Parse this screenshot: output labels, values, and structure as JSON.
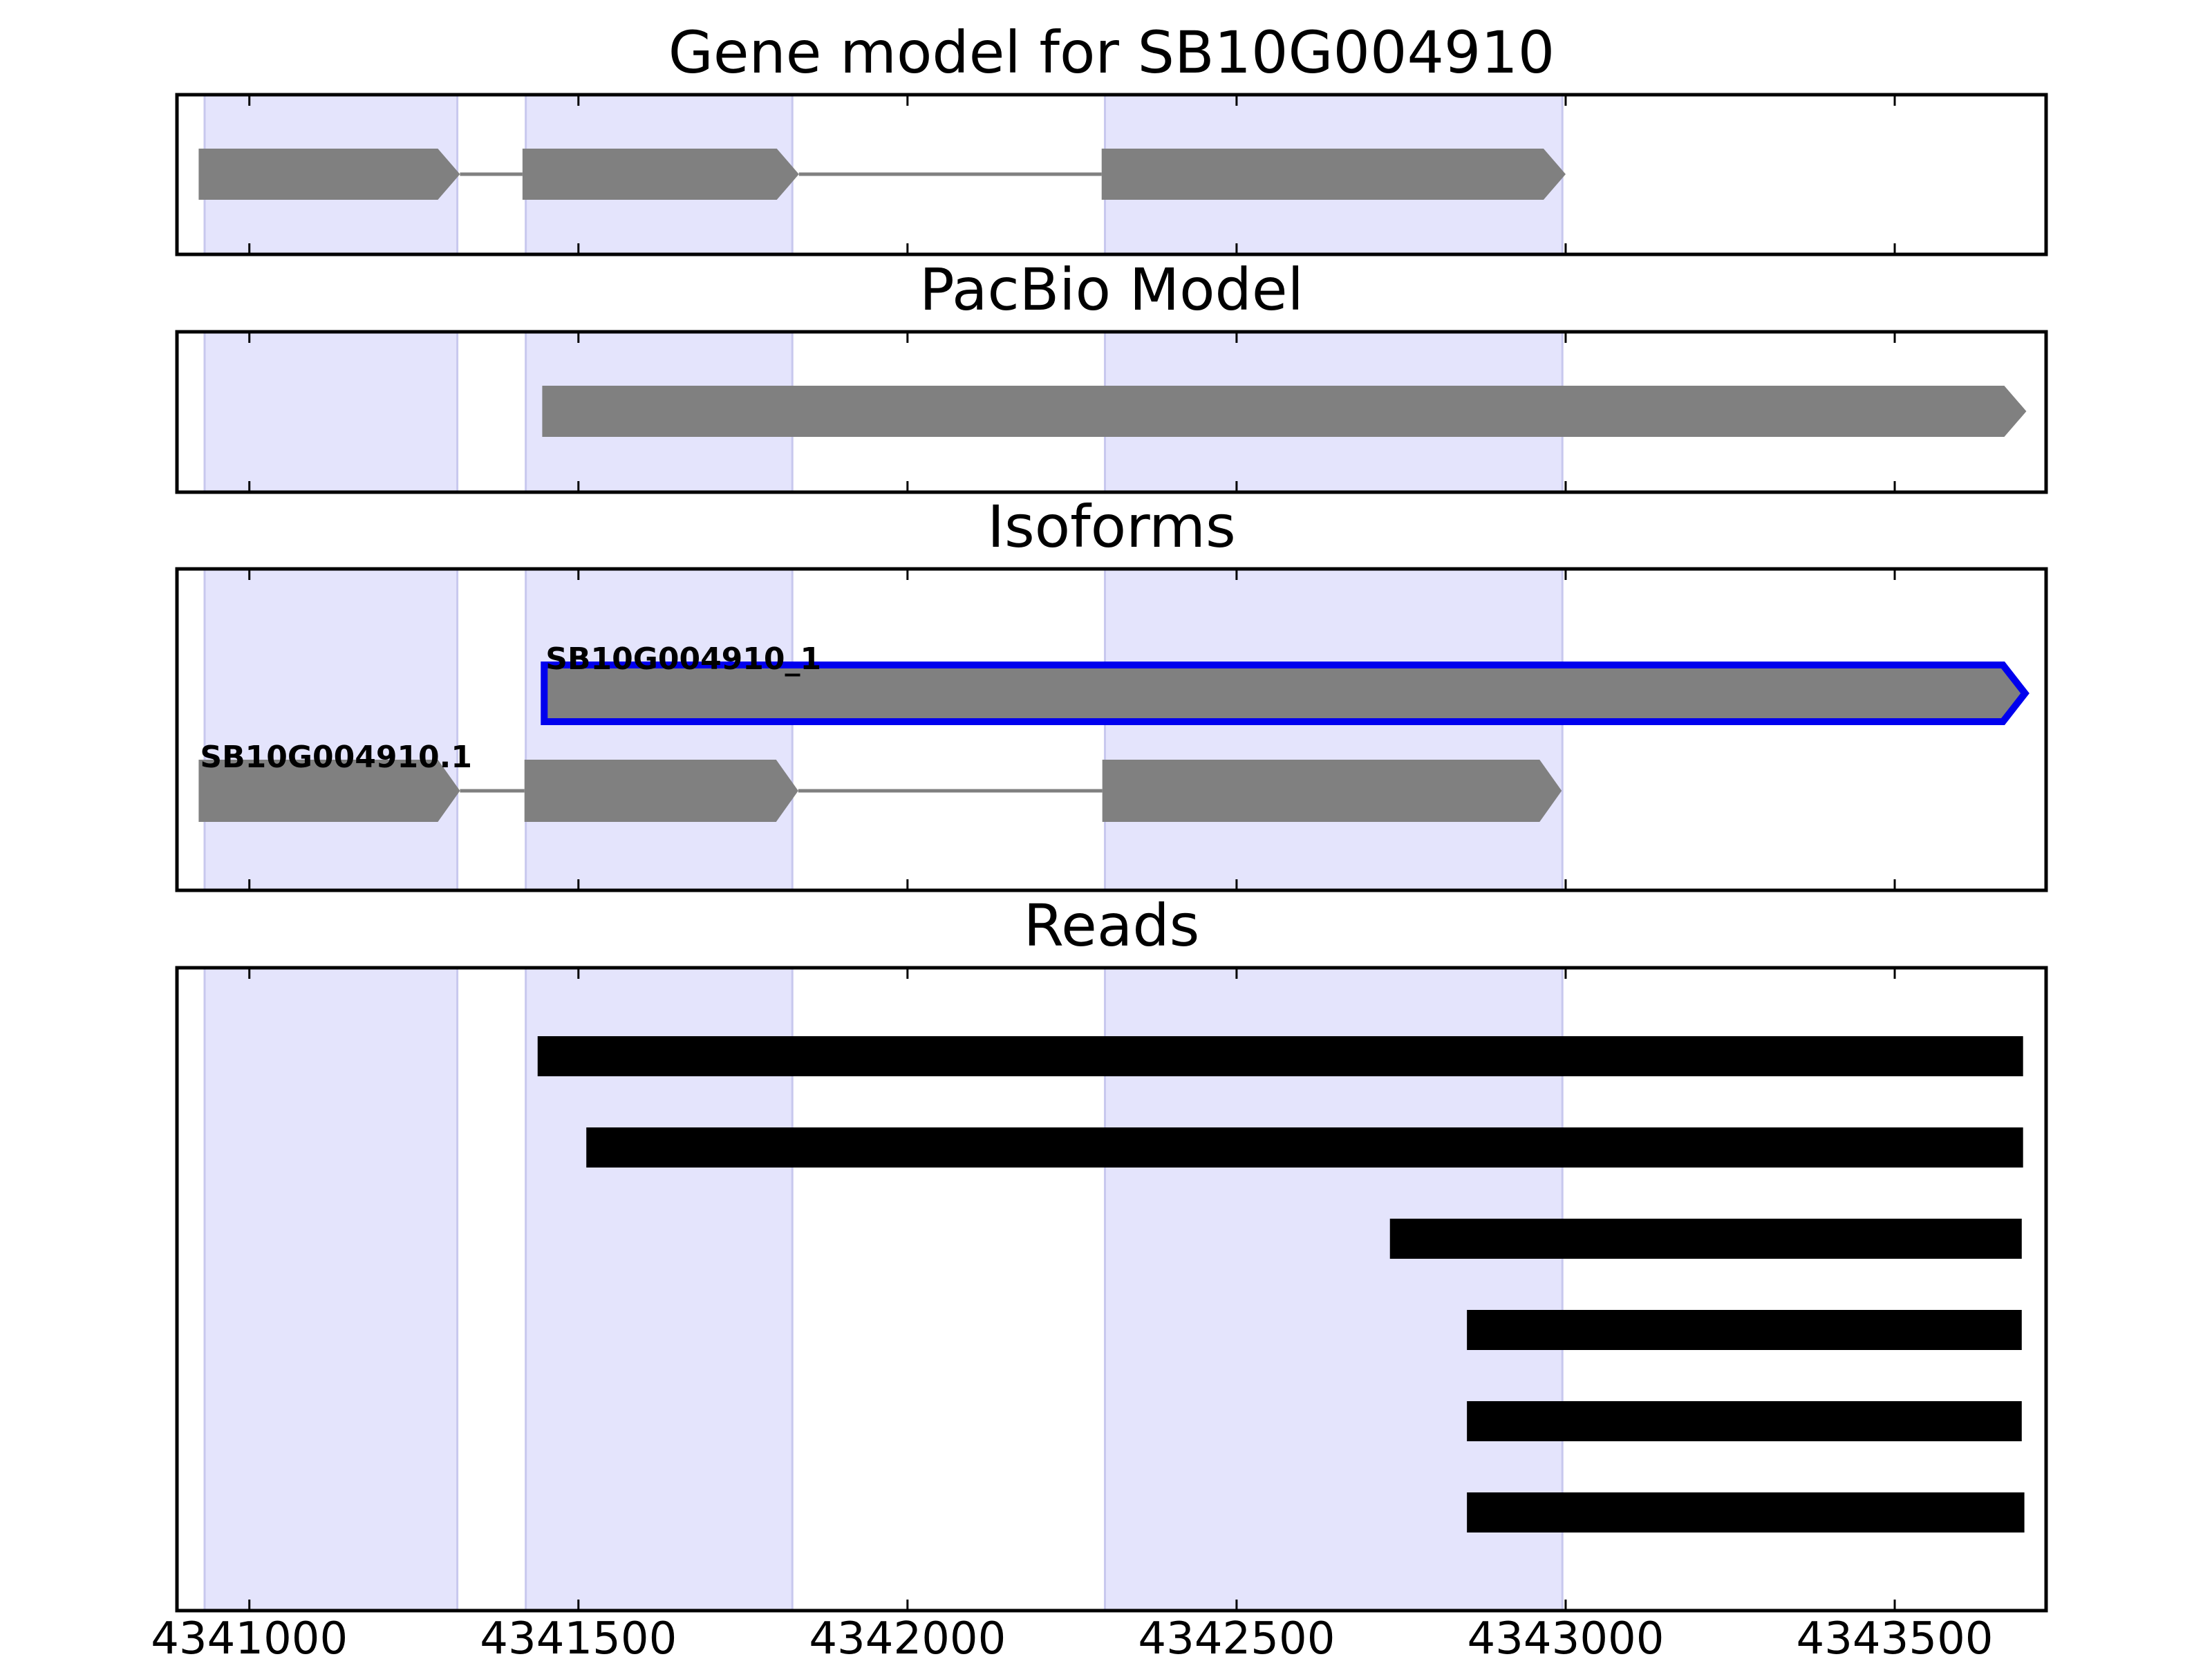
{
  "chart_data": {
    "type": "gene-track",
    "x_axis": {
      "range": [
        4340890,
        4343730
      ],
      "ticks": [
        4341000,
        4341500,
        4342000,
        4342500,
        4343000,
        4343500
      ],
      "tick_labels": [
        "4341000",
        "4341500",
        "4342000",
        "4342500",
        "4343000",
        "4343500"
      ]
    },
    "highlight_regions": [
      {
        "start": 4340932,
        "end": 4341316
      },
      {
        "start": 4341420,
        "end": 4341825
      },
      {
        "start": 4342300,
        "end": 4342995
      }
    ],
    "colors": {
      "highlight": "#e4e4fc",
      "highlight_edge": "#c8c8ee",
      "feature": "#808080",
      "intron": "#808080",
      "selected_outline": "#0000ee",
      "read": "#000000",
      "frame": "#000000"
    },
    "panels": [
      {
        "title": "Gene model for SB10G004910",
        "kind": "model",
        "models": [
          {
            "exons": [
              [
                4340923,
                4341320
              ],
              [
                4341415,
                4341835
              ],
              [
                4342295,
                4343000
              ]
            ],
            "strand": "+",
            "selected": false
          }
        ]
      },
      {
        "title": "PacBio Model",
        "kind": "model",
        "models": [
          {
            "exons": [
              [
                4341445,
                4343700
              ]
            ],
            "strand": "+",
            "selected": false
          }
        ]
      },
      {
        "title": "Isoforms",
        "kind": "model",
        "models": [
          {
            "label": "SB10G004910_1",
            "exons": [
              [
                4341448,
                4343698
              ]
            ],
            "strand": "+",
            "selected": true
          },
          {
            "label": "SB10G004910.1",
            "exons": [
              [
                4340923,
                4341320
              ],
              [
                4341418,
                4341834
              ],
              [
                4342296,
                4342994
              ]
            ],
            "strand": "+",
            "selected": false
          }
        ]
      },
      {
        "title": "Reads",
        "kind": "reads",
        "reads": [
          {
            "start": 4341438,
            "end": 4343695
          },
          {
            "start": 4341512,
            "end": 4343695
          },
          {
            "start": 4342733,
            "end": 4343693
          },
          {
            "start": 4342850,
            "end": 4343693
          },
          {
            "start": 4342850,
            "end": 4343693
          },
          {
            "start": 4342850,
            "end": 4343697
          }
        ]
      }
    ]
  }
}
